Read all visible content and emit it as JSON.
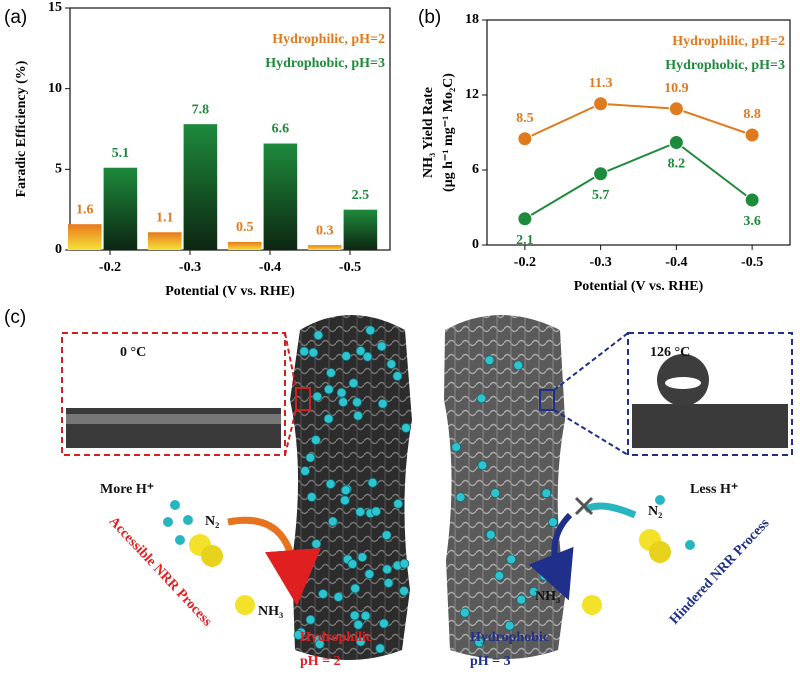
{
  "chart_data": [
    {
      "type": "bar",
      "panel_label": "(a)",
      "xlabel": "Potential (V vs. RHE)",
      "ylabel": "Faradic Efficiency (%)",
      "categories": [
        "-0.2",
        "-0.3",
        "-0.4",
        "-0.5"
      ],
      "series": [
        {
          "name": "Hydrophilic, pH=2",
          "color": "#e07a1f",
          "values": [
            1.6,
            1.1,
            0.5,
            0.3
          ]
        },
        {
          "name": "Hydrophobic, pH=3",
          "color": "#1e8a3c",
          "values": [
            5.1,
            7.8,
            6.6,
            2.5
          ]
        }
      ],
      "ylim": [
        0,
        15
      ],
      "yticks": [
        0,
        5,
        10,
        15
      ]
    },
    {
      "type": "line",
      "panel_label": "(b)",
      "xlabel": "Potential (V vs. RHE)",
      "ylabel": [
        "NH₃ Yield Rate",
        "(μg h⁻¹ mg⁻¹ Mo₂C)"
      ],
      "categories": [
        "-0.2",
        "-0.3",
        "-0.4",
        "-0.5"
      ],
      "series": [
        {
          "name": "Hydrophilic, pH=2",
          "color": "#e07a1f",
          "values": [
            8.5,
            11.3,
            10.9,
            8.8
          ]
        },
        {
          "name": "Hydrophobic, pH=3",
          "color": "#1e8a3c",
          "values": [
            2.1,
            5.7,
            8.2,
            3.6
          ]
        }
      ],
      "ylim": [
        0,
        18
      ],
      "yticks": [
        0,
        6,
        12,
        18
      ]
    }
  ],
  "schematic": {
    "panel_label": "(c)",
    "left_inset_temp": "0 °C",
    "right_inset_temp": "126 °C",
    "left_ion": "More H⁺",
    "left_n2": "N₂",
    "left_nh3": "NH₃",
    "left_process": "Accessible NRR Process",
    "left_name": "Hydrophilic",
    "left_ph": "pH = 2",
    "right_name": "Hydrophobic",
    "right_ph": "pH = 3",
    "right_ion": "Less H⁺",
    "right_n2": "N₂",
    "right_nh3": "NH₃",
    "right_process": "Hindered NRR Process"
  }
}
